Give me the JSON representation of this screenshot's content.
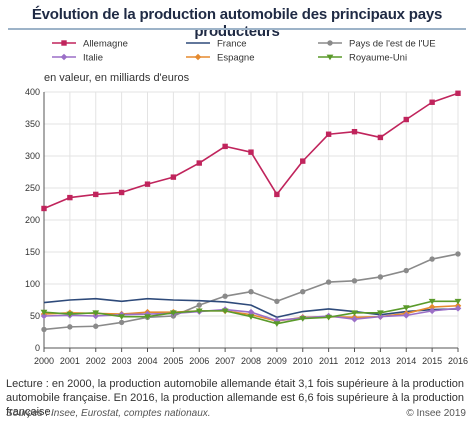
{
  "title": "Évolution de la production automobile des principaux pays producteurs",
  "units_label": "en valeur, en milliards d'euros",
  "note": "Lecture : en 2000, la production automobile allemande était 3,1 fois supérieure à la production automobile française. En 2016, la production allemande est 6,6 fois supérieure à la production française.",
  "sources": "Sources : Insee, Eurostat, comptes nationaux.",
  "credit": "© Insee 2019",
  "chart_data": {
    "type": "line",
    "xlabel": "",
    "ylabel": "",
    "x": [
      2000,
      2001,
      2002,
      2003,
      2004,
      2005,
      2006,
      2007,
      2008,
      2009,
      2010,
      2011,
      2012,
      2013,
      2014,
      2015,
      2016
    ],
    "ylim": [
      0,
      400
    ],
    "yticks": [
      0,
      50,
      100,
      150,
      200,
      250,
      300,
      350,
      400
    ],
    "grid": true,
    "legend_position": "top",
    "series": [
      {
        "name": "Allemagne",
        "color": "#c0245c",
        "marker": "square",
        "values": [
          218,
          235,
          240,
          243,
          256,
          267,
          289,
          315,
          306,
          240,
          292,
          334,
          338,
          329,
          357,
          384,
          398
        ]
      },
      {
        "name": "France",
        "color": "#2e4a7a",
        "marker": "none",
        "values": [
          71,
          75,
          77,
          73,
          77,
          75,
          74,
          72,
          67,
          48,
          57,
          61,
          57,
          52,
          57,
          60,
          61
        ]
      },
      {
        "name": "Pays de l'est de l'UE",
        "color": "#8a8a8a",
        "marker": "circle",
        "values": [
          29,
          33,
          34,
          40,
          48,
          50,
          67,
          81,
          88,
          73,
          88,
          103,
          105,
          111,
          121,
          139,
          147
        ]
      },
      {
        "name": "Italie",
        "color": "#9b6fc7",
        "marker": "diamond",
        "values": [
          50,
          51,
          50,
          52,
          53,
          54,
          57,
          60,
          56,
          43,
          47,
          50,
          45,
          49,
          51,
          58,
          62
        ]
      },
      {
        "name": "Espagne",
        "color": "#e58a2e",
        "marker": "diamond",
        "values": [
          53,
          55,
          54,
          53,
          56,
          56,
          58,
          58,
          52,
          42,
          48,
          49,
          48,
          49,
          54,
          64,
          66
        ]
      },
      {
        "name": "Royaume-Uni",
        "color": "#5a9a2a",
        "marker": "triangle",
        "values": [
          56,
          53,
          55,
          49,
          49,
          55,
          58,
          58,
          49,
          38,
          46,
          48,
          55,
          55,
          63,
          73,
          73
        ]
      }
    ]
  }
}
